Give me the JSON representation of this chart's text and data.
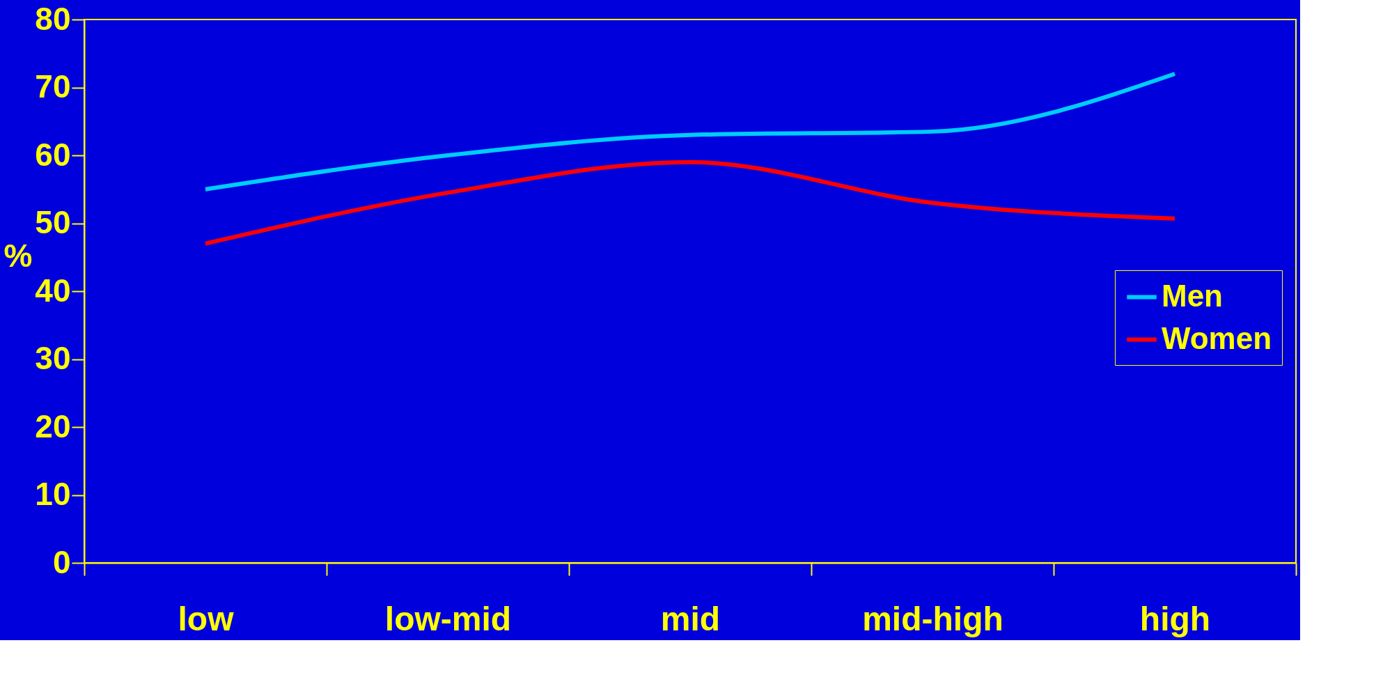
{
  "chart_data": {
    "type": "line",
    "ylabel": "%",
    "categories": [
      "low",
      "low-mid",
      "mid",
      "mid-high",
      "high"
    ],
    "series": [
      {
        "name": "Men",
        "color": "#00ccff",
        "values": [
          55,
          60,
          63,
          63.5,
          72
        ]
      },
      {
        "name": "Women",
        "color": "#ff0000",
        "values": [
          47,
          54.5,
          59,
          53,
          50.7
        ]
      }
    ],
    "ylim": [
      0,
      80
    ],
    "yticks": [
      0,
      10,
      20,
      30,
      40,
      50,
      60,
      70,
      80
    ],
    "grid": false,
    "legend": "right",
    "marker": "none",
    "line_style": "solid"
  }
}
